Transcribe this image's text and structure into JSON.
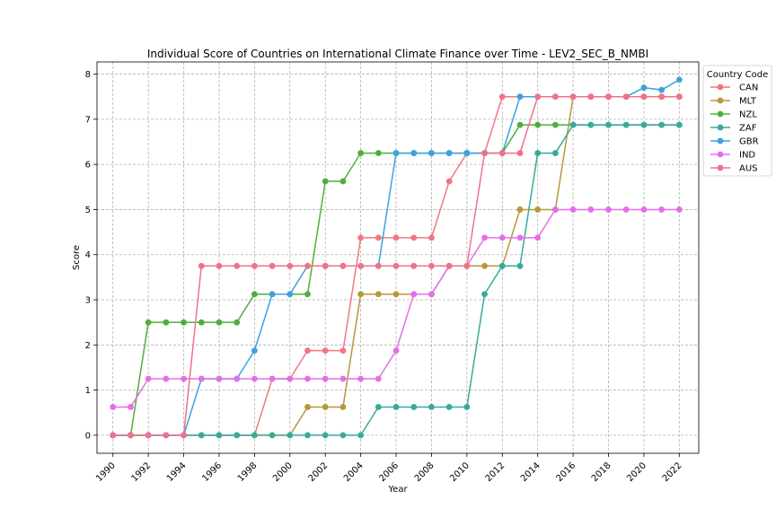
{
  "chart_data": {
    "type": "line",
    "title": "Individual Score of Countries on International Climate Finance over Time - LEV2_SEC_B_NMBI",
    "xlabel": "Year",
    "ylabel": "Score",
    "xlim": [
      1989.1,
      2023.1
    ],
    "ylim": [
      -0.4,
      8.27
    ],
    "x": [
      1990,
      1991,
      1992,
      1993,
      1994,
      1995,
      1996,
      1997,
      1998,
      1999,
      2000,
      2001,
      2002,
      2003,
      2004,
      2005,
      2006,
      2007,
      2008,
      2009,
      2010,
      2011,
      2012,
      2013,
      2014,
      2015,
      2016,
      2017,
      2018,
      2019,
      2020,
      2021,
      2022
    ],
    "x_ticks": [
      1990,
      1992,
      1994,
      1996,
      1998,
      2000,
      2002,
      2004,
      2006,
      2008,
      2010,
      2012,
      2014,
      2016,
      2018,
      2020,
      2022
    ],
    "y_ticks": [
      0,
      1,
      2,
      3,
      4,
      5,
      6,
      7,
      8
    ],
    "grid": true,
    "legend_title": "Country Code",
    "legend_position": "upper-right-outside",
    "series": [
      {
        "name": "CAN",
        "color": "#f07781",
        "values": [
          0,
          0,
          0,
          0,
          0,
          0,
          0,
          0,
          0,
          1.25,
          1.25,
          1.875,
          1.875,
          1.875,
          4.375,
          4.375,
          4.375,
          4.375,
          4.375,
          5.625,
          6.25,
          6.25,
          7.5,
          7.5,
          7.5,
          7.5,
          7.5,
          7.5,
          7.5,
          7.5,
          7.5,
          7.5,
          7.5
        ]
      },
      {
        "name": "MLT",
        "color": "#b5983a",
        "values": [
          0,
          0,
          0,
          0,
          0,
          0,
          0,
          0,
          0,
          0,
          0,
          0.625,
          0.625,
          0.625,
          3.125,
          3.125,
          3.125,
          3.125,
          3.125,
          3.75,
          3.75,
          3.75,
          3.75,
          5,
          5,
          5,
          7.5,
          7.5,
          7.5,
          7.5,
          7.5,
          7.5,
          7.5
        ]
      },
      {
        "name": "NZL",
        "color": "#4fae3b",
        "values": [
          0,
          0,
          2.5,
          2.5,
          2.5,
          2.5,
          2.5,
          2.5,
          3.125,
          3.125,
          3.125,
          3.125,
          5.625,
          5.625,
          6.25,
          6.25,
          6.25,
          6.25,
          6.25,
          6.25,
          6.25,
          6.25,
          6.25,
          6.875,
          6.875,
          6.875,
          6.875,
          6.875,
          6.875,
          6.875,
          6.875,
          6.875,
          6.875
        ]
      },
      {
        "name": "ZAF",
        "color": "#36ab9c",
        "values": [
          0,
          0,
          0,
          0,
          0,
          0,
          0,
          0,
          0,
          0,
          0,
          0,
          0,
          0,
          0,
          0.625,
          0.625,
          0.625,
          0.625,
          0.625,
          0.625,
          3.125,
          3.75,
          3.75,
          6.25,
          6.25,
          6.875,
          6.875,
          6.875,
          6.875,
          6.875,
          6.875,
          6.875
        ]
      },
      {
        "name": "GBR",
        "color": "#3ca2e0",
        "values": [
          0,
          0,
          0,
          0,
          0,
          1.25,
          1.25,
          1.25,
          1.875,
          3.125,
          3.125,
          3.75,
          3.75,
          3.75,
          3.75,
          3.75,
          6.25,
          6.25,
          6.25,
          6.25,
          6.25,
          6.25,
          6.25,
          7.5,
          7.5,
          7.5,
          7.5,
          7.5,
          7.5,
          7.5,
          7.7,
          7.65,
          7.875
        ]
      },
      {
        "name": "IND",
        "color": "#e56ee8",
        "values": [
          0.625,
          0.625,
          1.25,
          1.25,
          1.25,
          1.25,
          1.25,
          1.25,
          1.25,
          1.25,
          1.25,
          1.25,
          1.25,
          1.25,
          1.25,
          1.25,
          1.875,
          3.125,
          3.125,
          3.75,
          3.75,
          4.375,
          4.375,
          4.375,
          4.375,
          5,
          5,
          5,
          5,
          5,
          5,
          5,
          5
        ]
      },
      {
        "name": "AUS",
        "color": "#f0718a",
        "values": [
          0,
          0,
          0,
          0,
          0,
          3.75,
          3.75,
          3.75,
          3.75,
          3.75,
          3.75,
          3.75,
          3.75,
          3.75,
          3.75,
          3.75,
          3.75,
          3.75,
          3.75,
          3.75,
          3.75,
          6.25,
          6.25,
          6.25,
          7.5,
          7.5,
          7.5,
          7.5,
          7.5,
          7.5,
          7.5,
          7.5,
          7.5
        ]
      }
    ]
  }
}
